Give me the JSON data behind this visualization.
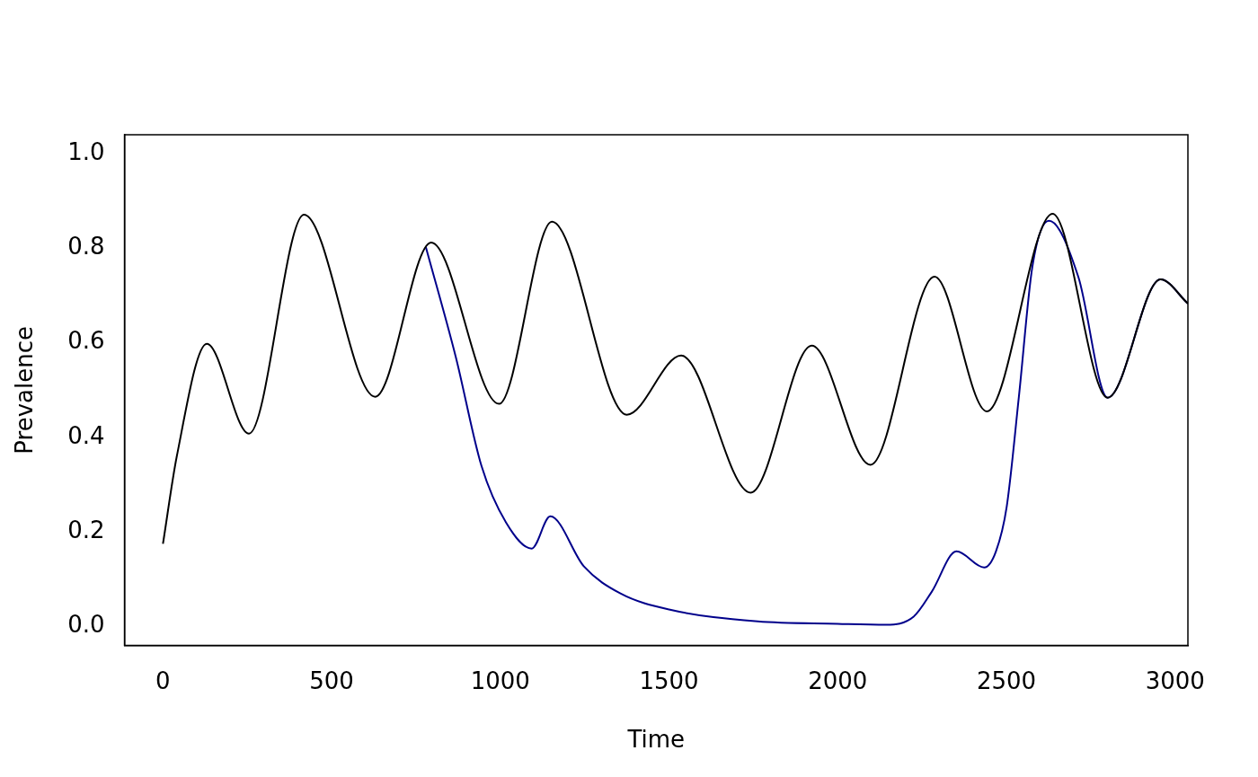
{
  "chart_data": {
    "type": "line",
    "xlabel": "Time",
    "ylabel": "Prevalence",
    "xlim": [
      -114,
      3038
    ],
    "ylim": [
      -0.04,
      1.04
    ],
    "xticks": [
      0,
      500,
      1000,
      1500,
      2000,
      2500,
      3000
    ],
    "yticks": [
      {
        "value": 0,
        "label": "0.0"
      },
      {
        "value": 0.2,
        "label": "0.2"
      },
      {
        "value": 0.4,
        "label": "0.4"
      },
      {
        "value": 0.6,
        "label": "0.6"
      },
      {
        "value": 0.8,
        "label": "0.8"
      },
      {
        "value": 1,
        "label": "1.0"
      }
    ],
    "grid": false,
    "legend": false,
    "marker": "none",
    "line_style": "solid",
    "series": [
      {
        "color": "#00008b",
        "x": [
          779,
          868,
          944,
          1017,
          1093,
          1148,
          1248,
          1356,
          1500,
          1763,
          2000,
          2143,
          2225,
          2279,
          2352,
          2434,
          2469,
          2501,
          2537,
          2577,
          2626,
          2713,
          2800,
          2957,
          3038
        ],
        "values": [
          0.803,
          0.57,
          0.34,
          0.22,
          0.165,
          0.233,
          0.127,
          0.07,
          0.036,
          0.011,
          0.006,
          0.004,
          0.021,
          0.074,
          0.159,
          0.125,
          0.159,
          0.254,
          0.486,
          0.761,
          0.858,
          0.74,
          0.484,
          0.734,
          0.683
        ]
      },
      {
        "color": "#000000",
        "x": [
          0,
          41,
          130,
          255,
          418,
          629,
          795,
          996,
          1153,
          1375,
          1536,
          1742,
          1923,
          2097,
          2287,
          2442,
          2637,
          2800,
          2957,
          3038
        ],
        "values": [
          0.175,
          0.36,
          0.598,
          0.408,
          0.871,
          0.486,
          0.812,
          0.471,
          0.856,
          0.448,
          0.573,
          0.283,
          0.594,
          0.342,
          0.74,
          0.455,
          0.873,
          0.484,
          0.734,
          0.683
        ]
      }
    ]
  }
}
